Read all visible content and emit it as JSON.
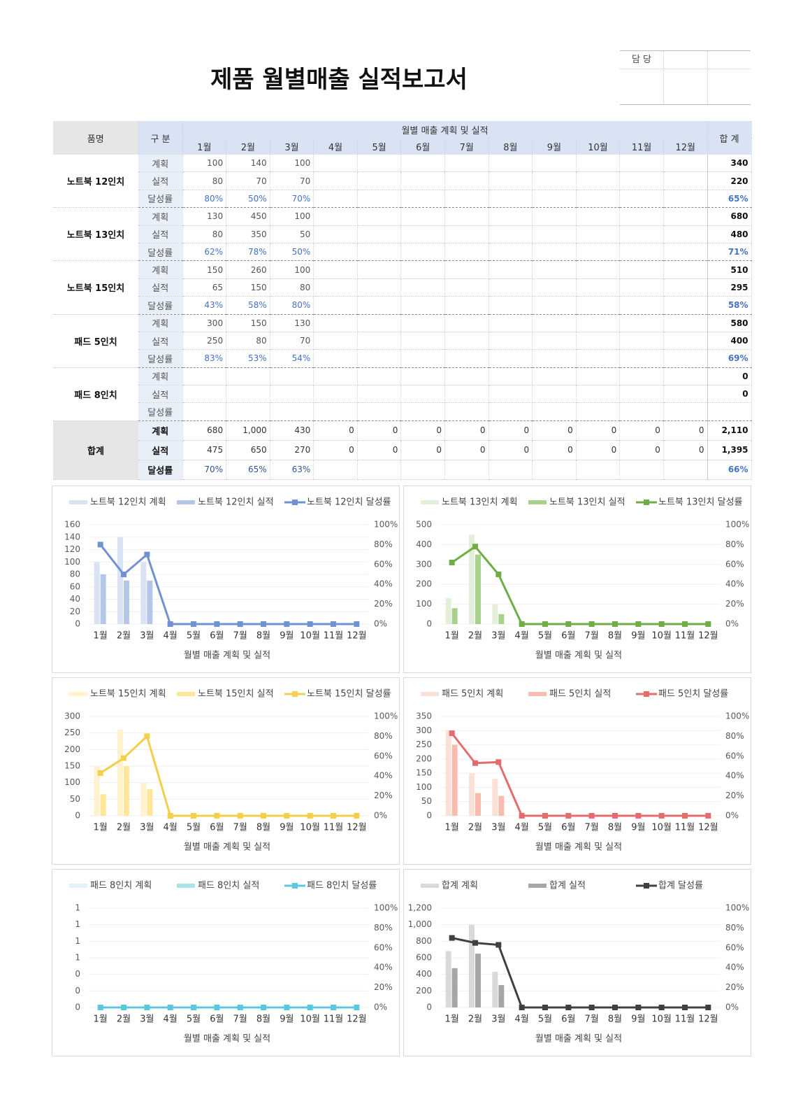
{
  "header": {
    "title": "제품 월별매출 실적보고서"
  },
  "approval": {
    "label": "담 당"
  },
  "table": {
    "headers": {
      "product": "품명",
      "category": "구 분",
      "group": "월별 매출 계획 및 실적",
      "months": [
        "1월",
        "2월",
        "3월",
        "4월",
        "5월",
        "6월",
        "7월",
        "8월",
        "9월",
        "10월",
        "11월",
        "12월"
      ],
      "total": "합 계"
    },
    "rows": [
      {
        "product": "노트북 12인치",
        "lines": [
          {
            "label": "계획",
            "values": [
              100,
              140,
              100,
              null,
              null,
              null,
              null,
              null,
              null,
              null,
              null,
              null
            ],
            "total": 340
          },
          {
            "label": "실적",
            "values": [
              80,
              70,
              70,
              null,
              null,
              null,
              null,
              null,
              null,
              null,
              null,
              null
            ],
            "total": 220
          },
          {
            "label": "달성률",
            "values": [
              "80%",
              "50%",
              "70%",
              null,
              null,
              null,
              null,
              null,
              null,
              null,
              null,
              null
            ],
            "total": "65%"
          }
        ]
      },
      {
        "product": "노트북 13인치",
        "lines": [
          {
            "label": "계획",
            "values": [
              130,
              450,
              100,
              null,
              null,
              null,
              null,
              null,
              null,
              null,
              null,
              null
            ],
            "total": 680
          },
          {
            "label": "실적",
            "values": [
              80,
              350,
              50,
              null,
              null,
              null,
              null,
              null,
              null,
              null,
              null,
              null
            ],
            "total": 480
          },
          {
            "label": "달성률",
            "values": [
              "62%",
              "78%",
              "50%",
              null,
              null,
              null,
              null,
              null,
              null,
              null,
              null,
              null
            ],
            "total": "71%"
          }
        ]
      },
      {
        "product": "노트북 15인치",
        "lines": [
          {
            "label": "계획",
            "values": [
              150,
              260,
              100,
              null,
              null,
              null,
              null,
              null,
              null,
              null,
              null,
              null
            ],
            "total": 510
          },
          {
            "label": "실적",
            "values": [
              65,
              150,
              80,
              null,
              null,
              null,
              null,
              null,
              null,
              null,
              null,
              null
            ],
            "total": 295
          },
          {
            "label": "달성률",
            "values": [
              "43%",
              "58%",
              "80%",
              null,
              null,
              null,
              null,
              null,
              null,
              null,
              null,
              null
            ],
            "total": "58%"
          }
        ]
      },
      {
        "product": "패드 5인치",
        "lines": [
          {
            "label": "계획",
            "values": [
              300,
              150,
              130,
              null,
              null,
              null,
              null,
              null,
              null,
              null,
              null,
              null
            ],
            "total": 580
          },
          {
            "label": "실적",
            "values": [
              250,
              80,
              70,
              null,
              null,
              null,
              null,
              null,
              null,
              null,
              null,
              null
            ],
            "total": 400
          },
          {
            "label": "달성률",
            "values": [
              "83%",
              "53%",
              "54%",
              null,
              null,
              null,
              null,
              null,
              null,
              null,
              null,
              null
            ],
            "total": "69%"
          }
        ]
      },
      {
        "product": "패드 8인치",
        "lines": [
          {
            "label": "계획",
            "values": [
              null,
              null,
              null,
              null,
              null,
              null,
              null,
              null,
              null,
              null,
              null,
              null
            ],
            "total": 0
          },
          {
            "label": "실적",
            "values": [
              null,
              null,
              null,
              null,
              null,
              null,
              null,
              null,
              null,
              null,
              null,
              null
            ],
            "total": 0
          },
          {
            "label": "달성률",
            "values": [
              null,
              null,
              null,
              null,
              null,
              null,
              null,
              null,
              null,
              null,
              null,
              null
            ],
            "total": null
          }
        ]
      }
    ],
    "summary": {
      "product": "합계",
      "lines": [
        {
          "label": "계획",
          "values": [
            680,
            "1,000",
            430,
            0,
            0,
            0,
            0,
            0,
            0,
            0,
            0,
            0
          ],
          "total": "2,110"
        },
        {
          "label": "실적",
          "values": [
            475,
            650,
            270,
            0,
            0,
            0,
            0,
            0,
            0,
            0,
            0,
            0
          ],
          "total": "1,395"
        },
        {
          "label": "달성률",
          "values": [
            "70%",
            "65%",
            "63%",
            null,
            null,
            null,
            null,
            null,
            null,
            null,
            null,
            null
          ],
          "total": "66%"
        }
      ]
    }
  },
  "chart_data": [
    {
      "type": "combo",
      "categories": [
        "1월",
        "2월",
        "3월",
        "4월",
        "5월",
        "6월",
        "7월",
        "8월",
        "9월",
        "10월",
        "11월",
        "12월"
      ],
      "x_label": "월별 매출 계획 및 실적",
      "ylim": [
        0,
        160
      ],
      "yticks": [
        0,
        20,
        40,
        60,
        80,
        100,
        120,
        140,
        160
      ],
      "y2lim": [
        0,
        100
      ],
      "y2ticks": [
        {
          "value": 0,
          "label": "0%"
        },
        {
          "value": 20,
          "label": "20%"
        },
        {
          "value": 40,
          "label": "40%"
        },
        {
          "value": 60,
          "label": "60%"
        },
        {
          "value": 80,
          "label": "80%"
        },
        {
          "value": 100,
          "label": "100%"
        }
      ],
      "series": [
        {
          "name": "노트북 12인치 계획",
          "type": "bar",
          "color": "#dae3f3",
          "values": [
            100,
            140,
            100,
            null,
            null,
            null,
            null,
            null,
            null,
            null,
            null,
            null
          ]
        },
        {
          "name": "노트북 12인치 실적",
          "type": "bar",
          "color": "#b4c7e7",
          "values": [
            80,
            70,
            70,
            null,
            null,
            null,
            null,
            null,
            null,
            null,
            null,
            null
          ]
        },
        {
          "name": "노트북 12인치 달성률",
          "type": "line",
          "axis": "y2",
          "color": "#7092d0",
          "values": [
            80,
            50,
            70,
            0,
            0,
            0,
            0,
            0,
            0,
            0,
            0,
            0
          ]
        }
      ]
    },
    {
      "type": "combo",
      "categories": [
        "1월",
        "2월",
        "3월",
        "4월",
        "5월",
        "6월",
        "7월",
        "8월",
        "9월",
        "10월",
        "11월",
        "12월"
      ],
      "x_label": "월별 매출 계획 및 실적",
      "ylim": [
        0,
        500
      ],
      "yticks": [
        0,
        100,
        200,
        300,
        400,
        500
      ],
      "y2lim": [
        0,
        100
      ],
      "y2ticks": [
        {
          "value": 0,
          "label": "0%"
        },
        {
          "value": 20,
          "label": "20%"
        },
        {
          "value": 40,
          "label": "40%"
        },
        {
          "value": 60,
          "label": "60%"
        },
        {
          "value": 80,
          "label": "80%"
        },
        {
          "value": 100,
          "label": "100%"
        }
      ],
      "series": [
        {
          "name": "노트북 13인치 계획",
          "type": "bar",
          "color": "#e2f0d9",
          "values": [
            130,
            450,
            100,
            null,
            null,
            null,
            null,
            null,
            null,
            null,
            null,
            null
          ]
        },
        {
          "name": "노트북 13인치 실적",
          "type": "bar",
          "color": "#a9d18e",
          "values": [
            80,
            350,
            50,
            null,
            null,
            null,
            null,
            null,
            null,
            null,
            null,
            null
          ]
        },
        {
          "name": "노트북 13인치 달성률",
          "type": "line",
          "axis": "y2",
          "color": "#70ad47",
          "values": [
            62,
            78,
            50,
            0,
            0,
            0,
            0,
            0,
            0,
            0,
            0,
            0
          ]
        }
      ]
    },
    {
      "type": "combo",
      "categories": [
        "1월",
        "2월",
        "3월",
        "4월",
        "5월",
        "6월",
        "7월",
        "8월",
        "9월",
        "10월",
        "11월",
        "12월"
      ],
      "x_label": "월별 매출 계획 및 실적",
      "ylim": [
        0,
        300
      ],
      "yticks": [
        0,
        50,
        100,
        150,
        200,
        250,
        300
      ],
      "y2lim": [
        0,
        100
      ],
      "y2ticks": [
        {
          "value": 0,
          "label": "0%"
        },
        {
          "value": 20,
          "label": "20%"
        },
        {
          "value": 40,
          "label": "40%"
        },
        {
          "value": 60,
          "label": "60%"
        },
        {
          "value": 80,
          "label": "80%"
        },
        {
          "value": 100,
          "label": "100%"
        }
      ],
      "series": [
        {
          "name": "노트북 15인치 계획",
          "type": "bar",
          "color": "#fff2cc",
          "values": [
            150,
            260,
            100,
            null,
            null,
            null,
            null,
            null,
            null,
            null,
            null,
            null
          ]
        },
        {
          "name": "노트북 15인치 실적",
          "type": "bar",
          "color": "#ffe699",
          "values": [
            65,
            150,
            80,
            null,
            null,
            null,
            null,
            null,
            null,
            null,
            null,
            null
          ]
        },
        {
          "name": "노트북 15인치 달성률",
          "type": "line",
          "axis": "y2",
          "color": "#f2d04b",
          "values": [
            43,
            58,
            80,
            0,
            0,
            0,
            0,
            0,
            0,
            0,
            0,
            0
          ]
        }
      ]
    },
    {
      "type": "combo",
      "categories": [
        "1월",
        "2월",
        "3월",
        "4월",
        "5월",
        "6월",
        "7월",
        "8월",
        "9월",
        "10월",
        "11월",
        "12월"
      ],
      "x_label": "월별 매출 계획 및 실적",
      "ylim": [
        0,
        350
      ],
      "yticks": [
        0,
        50,
        100,
        150,
        200,
        250,
        300,
        350
      ],
      "y2lim": [
        0,
        100
      ],
      "y2ticks": [
        {
          "value": 0,
          "label": "0%"
        },
        {
          "value": 20,
          "label": "20%"
        },
        {
          "value": 40,
          "label": "40%"
        },
        {
          "value": 60,
          "label": "60%"
        },
        {
          "value": 80,
          "label": "80%"
        },
        {
          "value": 100,
          "label": "100%"
        }
      ],
      "series": [
        {
          "name": "패드 5인치 계획",
          "type": "bar",
          "color": "#fbe0d8",
          "values": [
            300,
            150,
            130,
            null,
            null,
            null,
            null,
            null,
            null,
            null,
            null,
            null
          ]
        },
        {
          "name": "패드 5인치 실적",
          "type": "bar",
          "color": "#f8bcae",
          "values": [
            250,
            80,
            70,
            null,
            null,
            null,
            null,
            null,
            null,
            null,
            null,
            null
          ]
        },
        {
          "name": "패드 5인치 달성률",
          "type": "line",
          "axis": "y2",
          "color": "#e46c6c",
          "values": [
            83,
            53,
            54,
            0,
            0,
            0,
            0,
            0,
            0,
            0,
            0,
            0
          ]
        }
      ]
    },
    {
      "type": "combo",
      "categories": [
        "1월",
        "2월",
        "3월",
        "4월",
        "5월",
        "6월",
        "7월",
        "8월",
        "9월",
        "10월",
        "11월",
        "12월"
      ],
      "x_label": "월별 매출 계획 및 실적",
      "ylim": [
        0,
        1.2
      ],
      "yticks": [
        {
          "value": 0,
          "label": "0"
        },
        {
          "value": 0.2,
          "label": "0"
        },
        {
          "value": 0.4,
          "label": "0"
        },
        {
          "value": 0.6,
          "label": "1"
        },
        {
          "value": 0.8,
          "label": "1"
        },
        {
          "value": 1,
          "label": "1"
        },
        {
          "value": 1.2,
          "label": "1"
        }
      ],
      "y2lim": [
        0,
        100
      ],
      "y2ticks": [
        {
          "value": 0,
          "label": "0%"
        },
        {
          "value": 20,
          "label": "20%"
        },
        {
          "value": 40,
          "label": "40%"
        },
        {
          "value": 60,
          "label": "60%"
        },
        {
          "value": 80,
          "label": "80%"
        },
        {
          "value": 100,
          "label": "100%"
        }
      ],
      "series": [
        {
          "name": "패드 8인치 계획",
          "type": "bar",
          "color": "#def4f6",
          "values": [
            null,
            null,
            null,
            null,
            null,
            null,
            null,
            null,
            null,
            null,
            null,
            null
          ]
        },
        {
          "name": "패드 8인치 실적",
          "type": "bar",
          "color": "#a8e2ea",
          "values": [
            null,
            null,
            null,
            null,
            null,
            null,
            null,
            null,
            null,
            null,
            null,
            null
          ]
        },
        {
          "name": "패드 8인치 달성률",
          "type": "line",
          "axis": "y2",
          "color": "#5bc8dc",
          "values": [
            0,
            0,
            0,
            0,
            0,
            0,
            0,
            0,
            0,
            0,
            0,
            0
          ]
        }
      ]
    },
    {
      "type": "combo",
      "categories": [
        "1월",
        "2월",
        "3월",
        "4월",
        "5월",
        "6월",
        "7월",
        "8월",
        "9월",
        "10월",
        "11월",
        "12월"
      ],
      "x_label": "월별 매출 계획 및 실적",
      "ylim": [
        0,
        1200
      ],
      "yticks": [
        0,
        200,
        400,
        600,
        800,
        {
          "value": 1000,
          "label": "1,000"
        },
        {
          "value": 1200,
          "label": "1,200"
        }
      ],
      "y2lim": [
        0,
        100
      ],
      "y2ticks": [
        {
          "value": 0,
          "label": "0%"
        },
        {
          "value": 20,
          "label": "20%"
        },
        {
          "value": 40,
          "label": "40%"
        },
        {
          "value": 60,
          "label": "60%"
        },
        {
          "value": 80,
          "label": "80%"
        },
        {
          "value": 100,
          "label": "100%"
        }
      ],
      "series": [
        {
          "name": "합계 계획",
          "type": "bar",
          "color": "#d9d9d9",
          "values": [
            680,
            1000,
            430,
            0,
            0,
            0,
            0,
            0,
            0,
            0,
            0,
            0
          ]
        },
        {
          "name": "합계 실적",
          "type": "bar",
          "color": "#a6a6a6",
          "values": [
            475,
            650,
            270,
            0,
            0,
            0,
            0,
            0,
            0,
            0,
            0,
            0
          ]
        },
        {
          "name": "합계 달성률",
          "type": "line",
          "axis": "y2",
          "color": "#404040",
          "values": [
            70,
            65,
            63,
            0,
            0,
            0,
            0,
            0,
            0,
            0,
            0,
            0
          ]
        }
      ]
    }
  ]
}
